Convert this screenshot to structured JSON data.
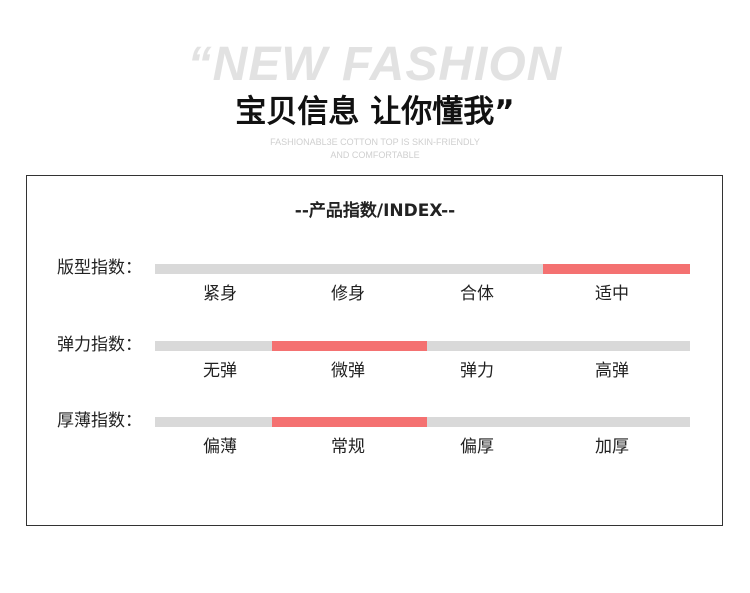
{
  "header": {
    "background_text": "“NEW FASHION",
    "title": "宝贝信息 让你懂我”",
    "subtitle_line1": "FASHIONABL3E COTTON TOP IS SKIN-FRIENDLY",
    "subtitle_line2": "AND COMFORTABLE"
  },
  "index_title": "--产品指数/INDEX--",
  "colors": {
    "track": "#d9d9d9",
    "highlight": "#f47171"
  },
  "rows": [
    {
      "label": "版型指数：",
      "options": [
        "紧身",
        "修身",
        "合体",
        "适中"
      ],
      "selected": "适中"
    },
    {
      "label": "弹力指数：",
      "options": [
        "无弹",
        "微弹",
        "弹力",
        "高弹"
      ],
      "selected": "微弹"
    },
    {
      "label": "厚薄指数：",
      "options": [
        "偏薄",
        "常规",
        "偏厚",
        "加厚"
      ],
      "selected": "常规"
    }
  ]
}
